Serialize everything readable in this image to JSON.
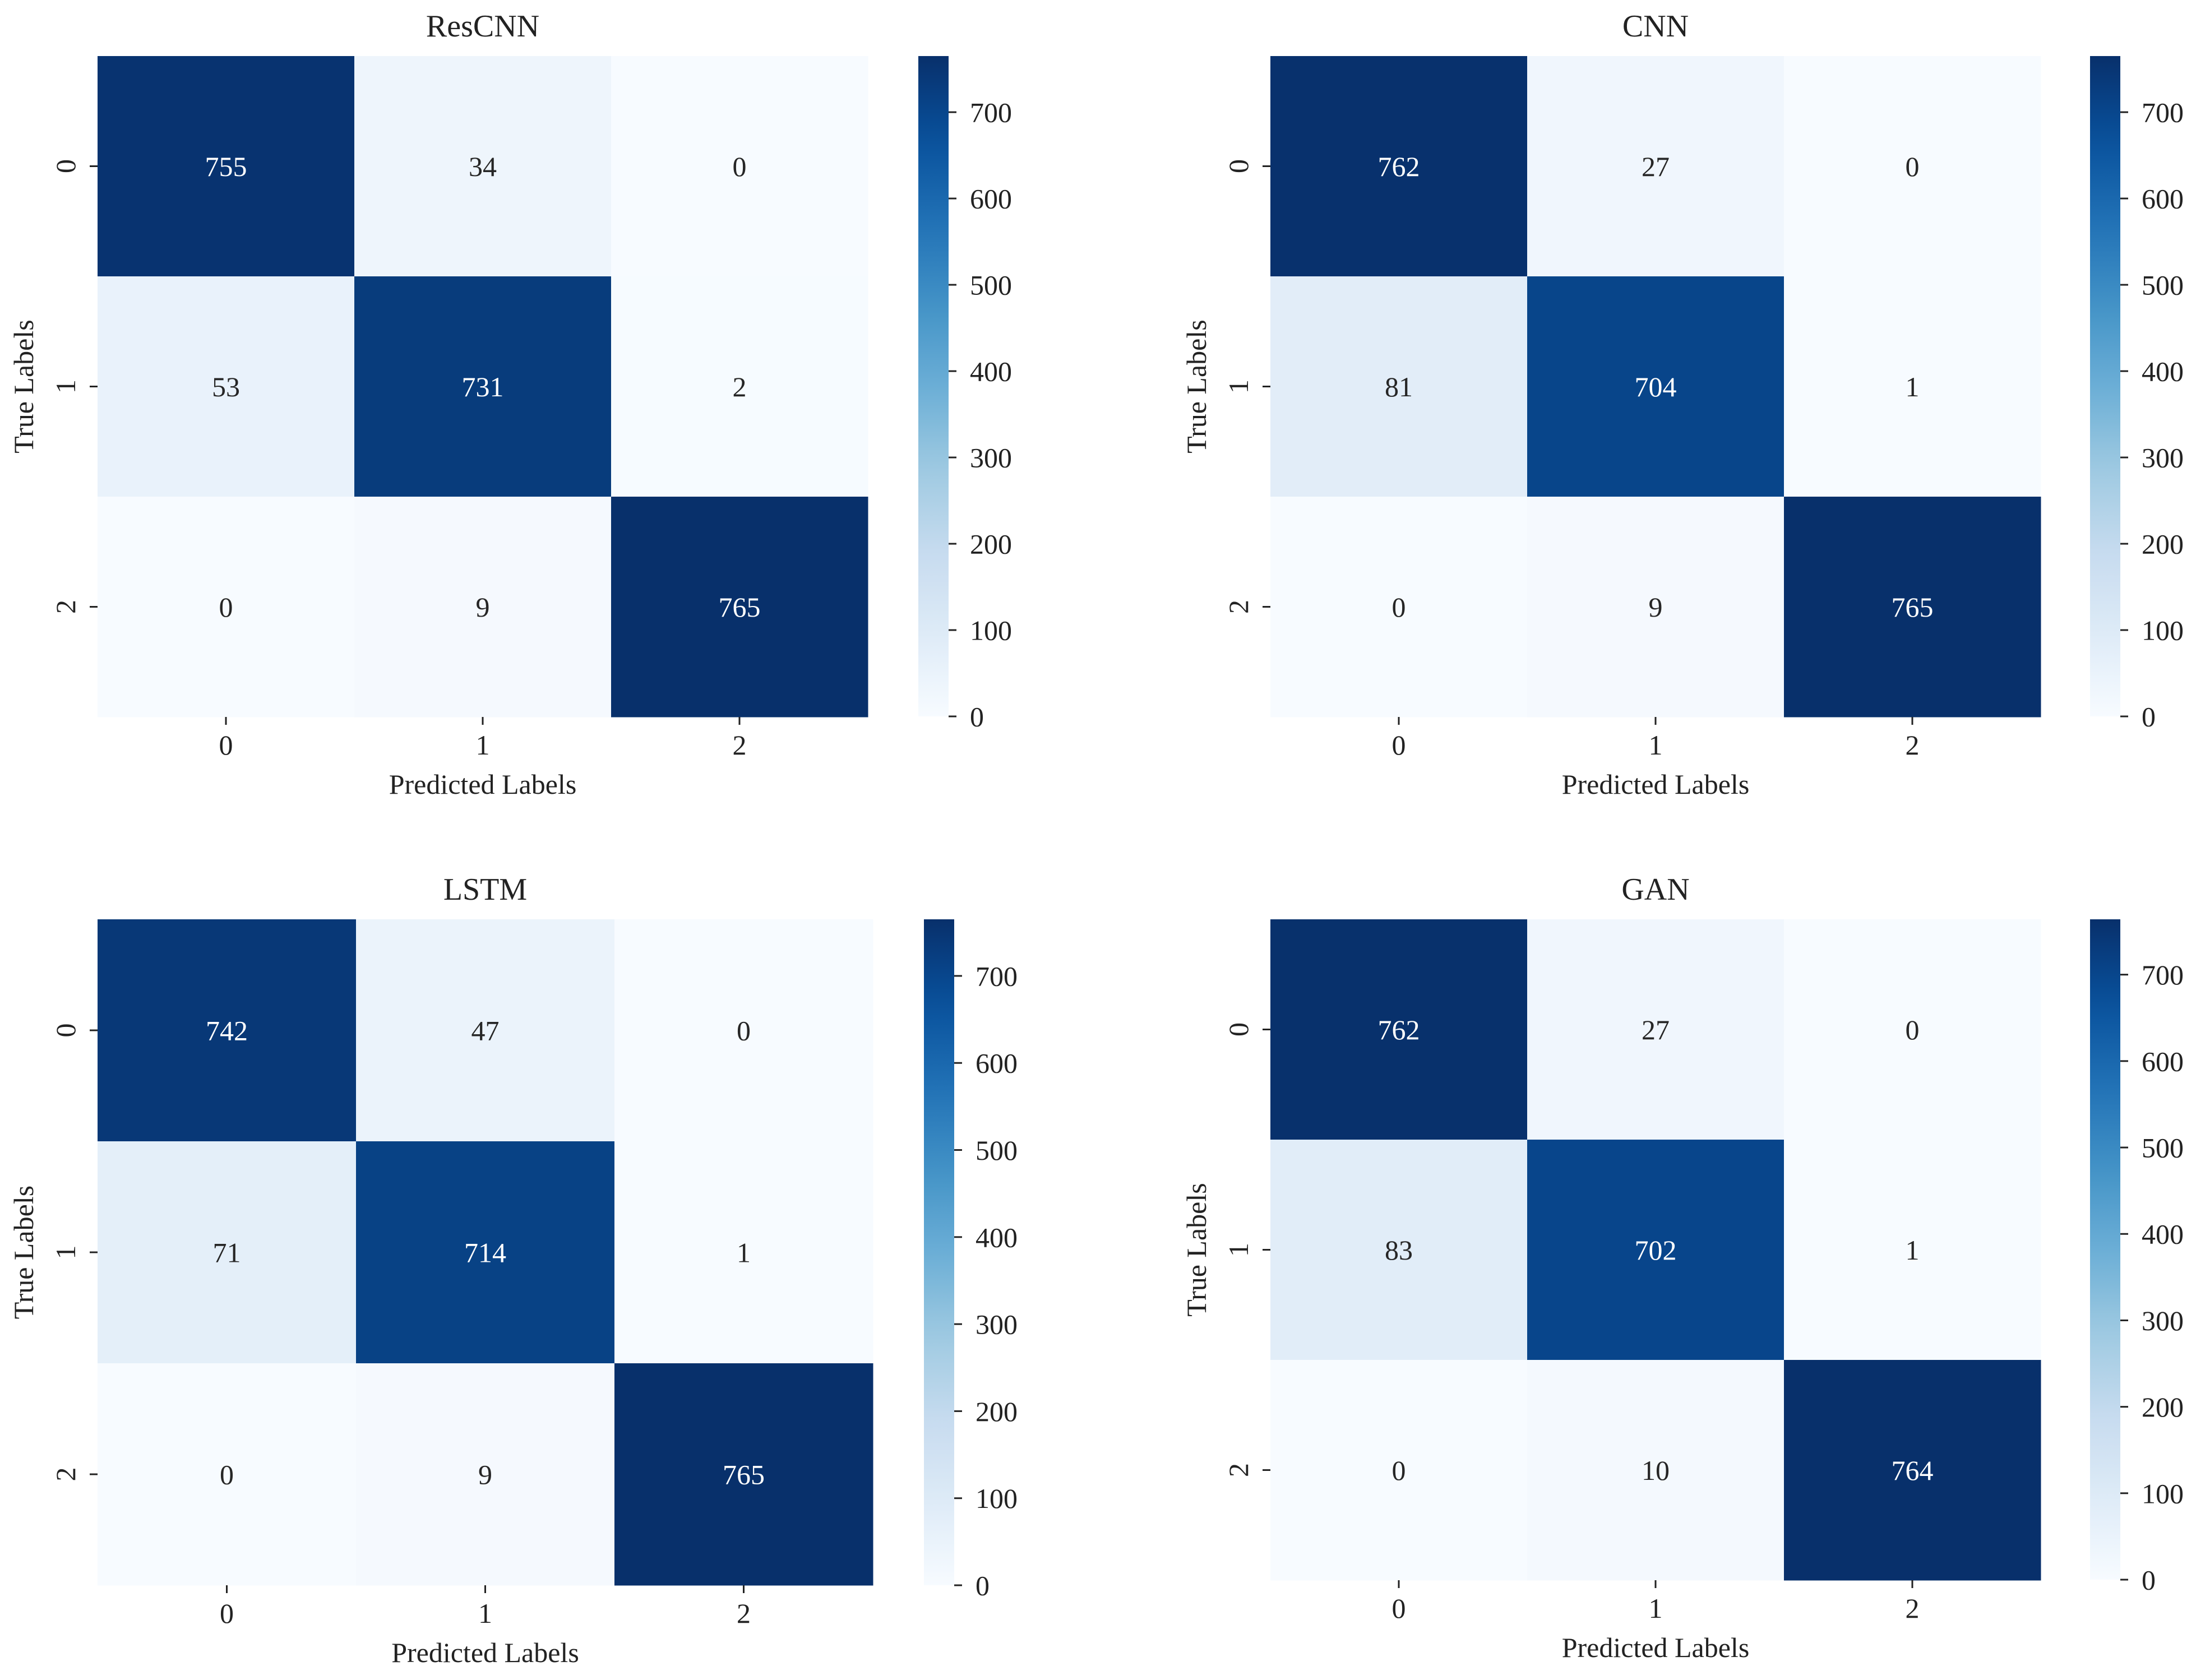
{
  "colormap": {
    "name": "Blues",
    "stops": [
      "#f7fbff",
      "#deebf7",
      "#c6dbef",
      "#9ecae1",
      "#6baed6",
      "#4292c6",
      "#2171b5",
      "#08519c",
      "#08306b"
    ]
  },
  "chart_data": [
    {
      "type": "heatmap",
      "title": "ResCNN",
      "xlabel": "Predicted Labels",
      "ylabel": "True Labels",
      "x_ticks": [
        "0",
        "1",
        "2"
      ],
      "y_ticks": [
        "0",
        "1",
        "2"
      ],
      "values": [
        [
          755,
          34,
          0
        ],
        [
          53,
          731,
          2
        ],
        [
          0,
          9,
          765
        ]
      ],
      "colorbar": {
        "range": [
          0,
          765
        ],
        "ticks": [
          0,
          100,
          200,
          300,
          400,
          500,
          600,
          700
        ]
      }
    },
    {
      "type": "heatmap",
      "title": "CNN",
      "xlabel": "Predicted Labels",
      "ylabel": "True Labels",
      "x_ticks": [
        "0",
        "1",
        "2"
      ],
      "y_ticks": [
        "0",
        "1",
        "2"
      ],
      "values": [
        [
          762,
          27,
          0
        ],
        [
          81,
          704,
          1
        ],
        [
          0,
          9,
          765
        ]
      ],
      "colorbar": {
        "range": [
          0,
          765
        ],
        "ticks": [
          0,
          100,
          200,
          300,
          400,
          500,
          600,
          700
        ]
      }
    },
    {
      "type": "heatmap",
      "title": "LSTM",
      "xlabel": "Predicted Labels",
      "ylabel": "True Labels",
      "x_ticks": [
        "0",
        "1",
        "2"
      ],
      "y_ticks": [
        "0",
        "1",
        "2"
      ],
      "values": [
        [
          742,
          47,
          0
        ],
        [
          71,
          714,
          1
        ],
        [
          0,
          9,
          765
        ]
      ],
      "colorbar": {
        "range": [
          0,
          765
        ],
        "ticks": [
          0,
          100,
          200,
          300,
          400,
          500,
          600,
          700
        ]
      }
    },
    {
      "type": "heatmap",
      "title": "GAN",
      "xlabel": "Predicted Labels",
      "ylabel": "True Labels",
      "x_ticks": [
        "0",
        "1",
        "2"
      ],
      "y_ticks": [
        "0",
        "1",
        "2"
      ],
      "values": [
        [
          762,
          27,
          0
        ],
        [
          83,
          702,
          1
        ],
        [
          0,
          10,
          764
        ]
      ],
      "colorbar": {
        "range": [
          0,
          764
        ],
        "ticks": [
          0,
          100,
          200,
          300,
          400,
          500,
          600,
          700
        ]
      }
    }
  ]
}
